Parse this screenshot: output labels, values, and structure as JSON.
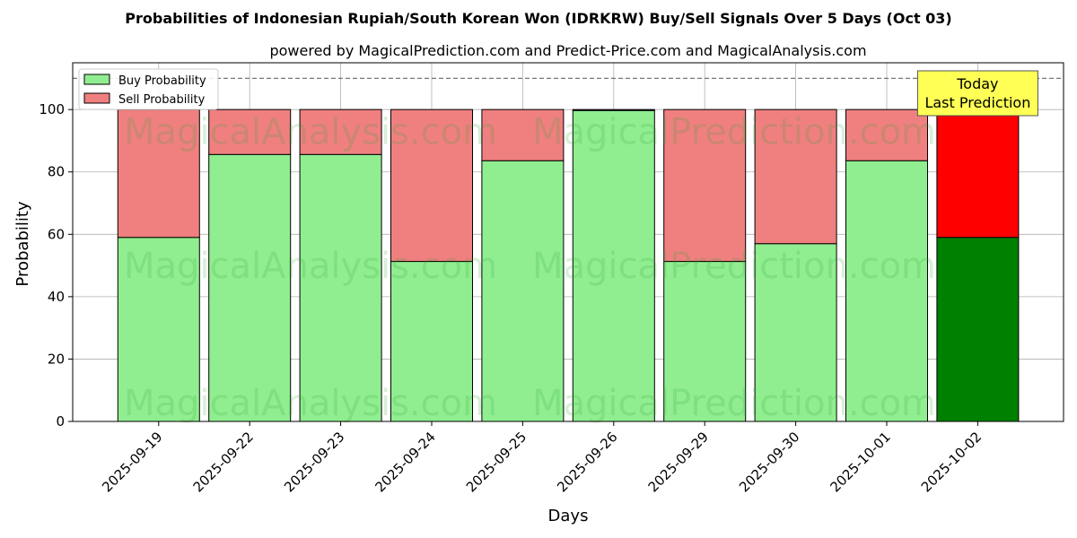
{
  "chart_data": {
    "type": "bar",
    "stacked": true,
    "title": "Probabilities of Indonesian Rupiah/South Korean Won (IDRKRW) Buy/Sell Signals Over 5 Days (Oct 03)",
    "subtitle": "powered by MagicalPrediction.com and Predict-Price.com and MagicalAnalysis.com",
    "xlabel": "Days",
    "ylabel": "Probability",
    "ylim": [
      0,
      115
    ],
    "yticks": [
      0,
      20,
      40,
      60,
      80,
      100
    ],
    "grid": true,
    "legend_position": "top-left",
    "reference_line": 110,
    "categories": [
      "2025-09-19",
      "2025-09-22",
      "2025-09-23",
      "2025-09-24",
      "2025-09-25",
      "2025-09-26",
      "2025-09-29",
      "2025-09-30",
      "2025-10-01",
      "2025-10-02"
    ],
    "series": [
      {
        "name": "Buy Probability",
        "color": "#90ee90",
        "highlight_color": "#008000",
        "values": [
          59,
          85.6,
          85.6,
          51.3,
          83.6,
          99.7,
          51.3,
          57,
          83.6,
          59
        ]
      },
      {
        "name": "Sell Probability",
        "color": "#f08080",
        "highlight_color": "#ff0000",
        "values": [
          41,
          14.4,
          14.4,
          48.7,
          16.4,
          0.3,
          48.7,
          43,
          16.4,
          41
        ]
      }
    ],
    "highlight_index": 9,
    "annotation": {
      "line1": "Today",
      "line2": "Last Prediction",
      "background": "#ffff55"
    },
    "watermarks": [
      "MagicalAnalysis.com",
      "MagicalPrediction.com"
    ]
  }
}
